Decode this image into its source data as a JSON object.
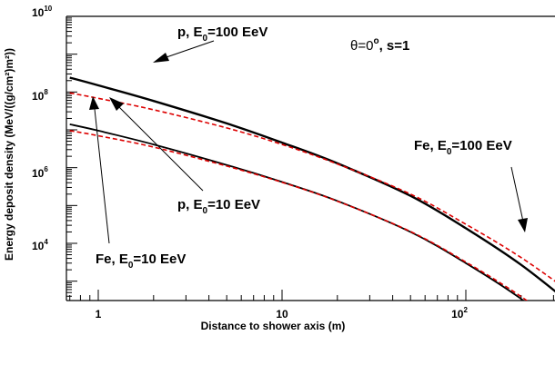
{
  "chart_data": {
    "type": "line",
    "xlabel": "Distance to shower axis (m)",
    "ylabel": "Energy deposit density (MeV/((g/cm²)m²))",
    "x_scale": "log",
    "y_scale": "log",
    "xlim": [
      0.7,
      400
    ],
    "ylim": [
      10,
      10000000000
    ],
    "grid": false,
    "x_tick_labels": [
      {
        "value": 1,
        "base": "1",
        "exp": ""
      },
      {
        "value": 10,
        "base": "10",
        "exp": ""
      },
      {
        "value": 100,
        "base": "10",
        "exp": "2"
      }
    ],
    "y_tick_labels": [
      {
        "value": 10000,
        "base": "10",
        "exp": "4"
      },
      {
        "value": 1000000,
        "base": "10",
        "exp": "6"
      },
      {
        "value": 100000000,
        "base": "10",
        "exp": "8"
      },
      {
        "value": 10000000000,
        "base": "10",
        "exp": "10"
      }
    ],
    "condition_label": {
      "theta": "θ=0",
      "deg": "o",
      "rest": ", s=1"
    },
    "series": [
      {
        "id": "p100",
        "style": "solid",
        "color": "#000000",
        "x": [
          0.7,
          1,
          2,
          5,
          10,
          20,
          50,
          100,
          200,
          400
        ],
        "y": [
          240000000,
          150000000,
          58000000,
          14800000,
          4600000,
          1300000,
          180000,
          25000,
          2700,
          190
        ]
      },
      {
        "id": "fe100",
        "style": "dashed",
        "color": "#dd0000",
        "x": [
          0.7,
          1,
          2,
          5,
          10,
          20,
          50,
          100,
          200,
          400
        ],
        "y": [
          95000000,
          68000000,
          34000000,
          11200000,
          4100000,
          1250000,
          200000,
          32000,
          4200,
          390
        ]
      },
      {
        "id": "p10",
        "style": "solid",
        "color": "#000000",
        "x": [
          0.7,
          1,
          2,
          5,
          10,
          20,
          50,
          100,
          200,
          400
        ],
        "y": [
          14000000,
          9500000,
          4100000,
          1180000,
          420000,
          132000,
          20000,
          3000,
          340,
          24
        ]
      },
      {
        "id": "fe10",
        "style": "dashed",
        "color": "#dd0000",
        "x": [
          0.7,
          1,
          2,
          5,
          10,
          20,
          50,
          100,
          200,
          400
        ],
        "y": [
          9500000,
          7000000,
          3500000,
          1100000,
          410000,
          130000,
          20500,
          3200,
          390,
          32
        ]
      }
    ],
    "annotations": [
      {
        "base": "p, E",
        "sub": "0",
        "rest": "=100 EeV"
      },
      {
        "base": "p, E",
        "sub": "0",
        "rest": "=10 EeV"
      },
      {
        "base": "Fe, E",
        "sub": "0",
        "rest": "=100 EeV"
      },
      {
        "base": "Fe, E",
        "sub": "0",
        "rest": "=10 EeV"
      }
    ]
  }
}
